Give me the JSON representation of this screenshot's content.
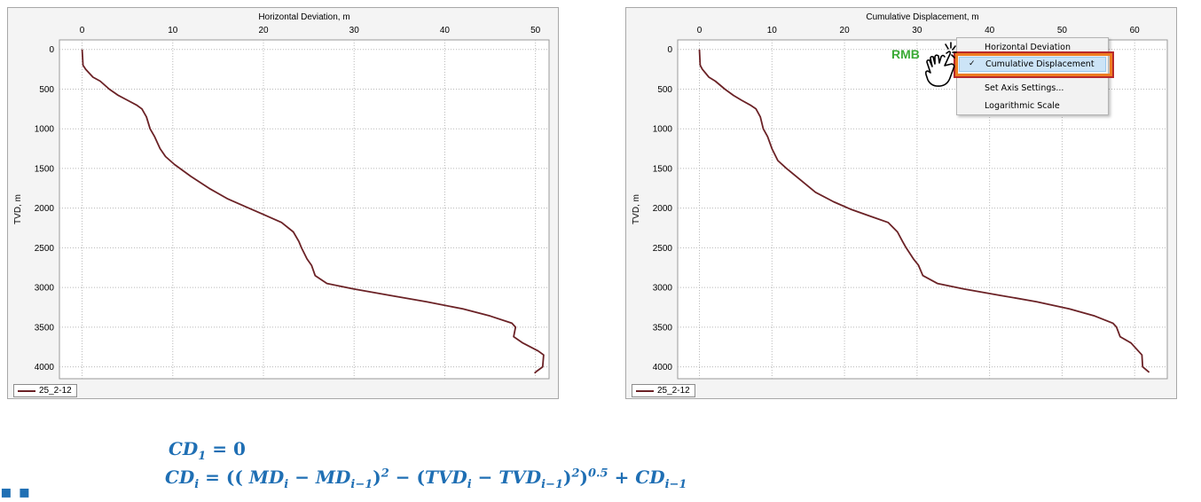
{
  "charts": [
    {
      "id": "left",
      "title": "Horizontal Deviation, m",
      "ylabel": "TVD, m",
      "xlim": [
        -2.5,
        51.5
      ],
      "ylim": [
        -120,
        4150
      ],
      "xticks": [
        0,
        10,
        20,
        30,
        40,
        50
      ],
      "yticks": [
        0,
        500,
        1000,
        1500,
        2000,
        2500,
        3000,
        3500,
        4000
      ],
      "legend": "25_2-12",
      "line_color": "#6b2226"
    },
    {
      "id": "right",
      "title": "Cumulative Displacement, m",
      "ylabel": "TVD, m",
      "xlim": [
        -3,
        64.5
      ],
      "ylim": [
        -120,
        4150
      ],
      "xticks": [
        0,
        10,
        20,
        30,
        40,
        50,
        60
      ],
      "yticks": [
        0,
        500,
        1000,
        1500,
        2000,
        2500,
        3000,
        3500,
        4000
      ],
      "legend": "25_2-12",
      "line_color": "#6b2226"
    }
  ],
  "chart_data": [
    {
      "type": "line",
      "title": "Horizontal Deviation, m",
      "xlabel": "Horizontal Deviation, m",
      "ylabel": "TVD, m",
      "series": [
        {
          "name": "25_2-12",
          "x": [
            0,
            0.1,
            0.4,
            1.2,
            2.0,
            3.0,
            4.0,
            5.0,
            6.0,
            6.6,
            7.1,
            7.5,
            8.0,
            8.6,
            9.2,
            10.2,
            12.0,
            14.0,
            16.0,
            18.0,
            20.0,
            22.0,
            23.3,
            23.9,
            24.2,
            24.8,
            25.3,
            25.7,
            27.0,
            30.0,
            34.0,
            38.0,
            42.0,
            45.0,
            47.4,
            47.8,
            47.6,
            48.6,
            50.3,
            50.9,
            50.8,
            50.2,
            49.9
          ],
          "y": [
            0,
            200,
            250,
            350,
            400,
            500,
            580,
            640,
            700,
            750,
            850,
            1000,
            1100,
            1250,
            1350,
            1450,
            1600,
            1750,
            1880,
            1980,
            2080,
            2180,
            2300,
            2420,
            2500,
            2640,
            2720,
            2850,
            2950,
            3020,
            3100,
            3180,
            3270,
            3360,
            3450,
            3500,
            3620,
            3700,
            3800,
            3850,
            4000,
            4050,
            4080
          ]
        }
      ]
    },
    {
      "type": "line",
      "title": "Cumulative Displacement, m",
      "xlabel": "Cumulative Displacement, m",
      "ylabel": "TVD, m",
      "series": [
        {
          "name": "25_2-12",
          "x": [
            0,
            0.1,
            0.4,
            1.3,
            2.2,
            3.5,
            4.7,
            5.8,
            7.0,
            7.8,
            8.4,
            8.8,
            9.4,
            10.0,
            10.8,
            12.0,
            14.0,
            16.0,
            18.5,
            21.0,
            23.5,
            26.0,
            27.3,
            28.0,
            28.5,
            29.5,
            30.2,
            30.8,
            32.8,
            36.5,
            41.5,
            46.5,
            51.0,
            54.5,
            57.0,
            57.5,
            58.0,
            59.5,
            60.5,
            61.0,
            61.1,
            62.0
          ],
          "y": [
            0,
            200,
            250,
            350,
            400,
            500,
            580,
            640,
            700,
            750,
            850,
            1000,
            1100,
            1250,
            1400,
            1500,
            1650,
            1800,
            1920,
            2020,
            2100,
            2180,
            2300,
            2420,
            2500,
            2640,
            2720,
            2850,
            2950,
            3020,
            3100,
            3180,
            3270,
            3360,
            3450,
            3500,
            3620,
            3700,
            3800,
            3850,
            4000,
            4070
          ]
        }
      ]
    }
  ],
  "menu": {
    "items": [
      {
        "label": "Horizontal Deviation",
        "checked": false
      },
      {
        "label": "Cumulative Displacement",
        "checked": true
      },
      {
        "label": "Set Axis Settings...",
        "checked": false
      },
      {
        "label": "Logarithmic Scale",
        "checked": false
      }
    ],
    "check_mark": "✓"
  },
  "annotation": {
    "rmb_label": "RMB",
    "accent_color": "#3aaa35",
    "highlight_color": "#ee7d21"
  },
  "formula": {
    "line1": {
      "lhs": "CD",
      "lhs_sub": "1",
      "rhs": "=  0"
    },
    "line2": {
      "lhs": "CD",
      "lhs_sub": "i",
      "eq": " =  ((",
      "md1": " MD",
      "md1_sub": "i",
      "minus1": "  − ",
      "md2": "MD",
      "md2_sub": "i−1",
      "close1": ")",
      "sup1": "2",
      "minus2": " − (",
      "tvd1": "TVD",
      "tvd1_sub": "i",
      "minus3": " − ",
      "tvd2": "TVD",
      "tvd2_sub": "i−1",
      "close2": ")",
      "sup2": "2",
      "close3": ")",
      "sup3": "0.5",
      "plus": " + ",
      "cd": "CD",
      "cd_sub": "i−1"
    },
    "color": "#1f6fb4"
  }
}
